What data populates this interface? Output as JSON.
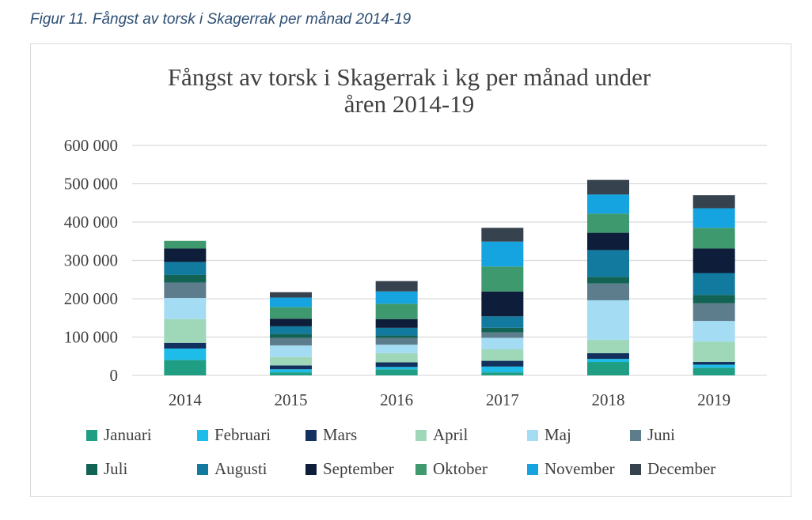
{
  "figure_caption": "Figur 11. Fångst av torsk i Skagerrak per månad 2014-19",
  "chart_data": {
    "type": "bar",
    "stacked": true,
    "title_lines": [
      "Fångst av torsk i  Skagerrak i kg per månad under",
      "åren 2014-19"
    ],
    "xlabel": "",
    "ylabel": "",
    "ylim": [
      0,
      600000
    ],
    "y_ticks": [
      0,
      100000,
      200000,
      300000,
      400000,
      500000,
      600000
    ],
    "y_tick_labels": [
      "0",
      "100 000",
      "200 000",
      "300 000",
      "400 000",
      "500 000",
      "600 000"
    ],
    "grid": true,
    "legend_position": "bottom",
    "categories": [
      "2014",
      "2015",
      "2016",
      "2017",
      "2018",
      "2019"
    ],
    "series": [
      {
        "name": "Januari",
        "color": "#1f9e84",
        "values": [
          40000,
          8000,
          16000,
          8000,
          35000,
          20000
        ]
      },
      {
        "name": "Februari",
        "color": "#1ebce8",
        "values": [
          30000,
          8000,
          6000,
          15000,
          8000,
          8000
        ]
      },
      {
        "name": "Mars",
        "color": "#12315e",
        "values": [
          15000,
          10000,
          12000,
          15000,
          15000,
          7000
        ]
      },
      {
        "name": "April",
        "color": "#9ed8b9",
        "values": [
          62000,
          22000,
          24000,
          30000,
          35000,
          53000
        ]
      },
      {
        "name": "Maj",
        "color": "#a4dcf4",
        "values": [
          55000,
          30000,
          22000,
          30000,
          103000,
          54000
        ]
      },
      {
        "name": "Juni",
        "color": "#5e7d8c",
        "values": [
          40000,
          20000,
          18000,
          14000,
          44000,
          46000
        ]
      },
      {
        "name": "Juli",
        "color": "#126354",
        "values": [
          20000,
          10000,
          6000,
          12000,
          17000,
          22000
        ]
      },
      {
        "name": "Augusti",
        "color": "#127a9e",
        "values": [
          34000,
          20000,
          20000,
          30000,
          70000,
          57000
        ]
      },
      {
        "name": "September",
        "color": "#0e1e3a",
        "values": [
          35000,
          20000,
          23000,
          65000,
          45000,
          64000
        ]
      },
      {
        "name": "Oktober",
        "color": "#3e9a6e",
        "values": [
          20000,
          30000,
          40000,
          65000,
          50000,
          54000
        ]
      },
      {
        "name": "November",
        "color": "#16a4e0",
        "values": [
          0,
          25000,
          32000,
          65000,
          50000,
          51000
        ]
      },
      {
        "name": "December",
        "color": "#36434f",
        "values": [
          0,
          14000,
          27000,
          36000,
          38000,
          34000
        ]
      }
    ]
  }
}
